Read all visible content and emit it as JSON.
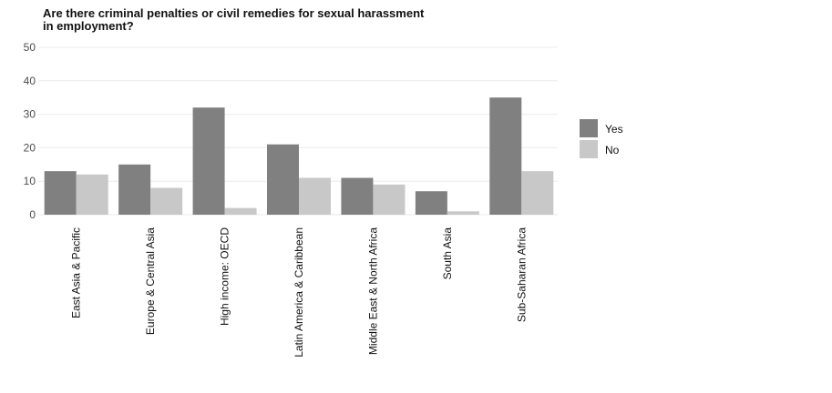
{
  "chart_data": {
    "type": "bar",
    "title": "Are there criminal penalties or civil remedies for sexual harassment\n in employment?",
    "xlabel": "",
    "ylabel": "",
    "ylim": [
      0,
      50
    ],
    "yticks": [
      0,
      10,
      20,
      30,
      40,
      50
    ],
    "grid": true,
    "legend_position": "right",
    "categories": [
      "East Asia & Pacific",
      "Europe & Central Asia",
      "High income: OECD",
      "Latin America & Caribbean",
      "Middle East & North Africa",
      "South Asia",
      "Sub-Saharan Africa"
    ],
    "series": [
      {
        "name": "Yes",
        "color": "#808080",
        "values": [
          13,
          15,
          32,
          21,
          11,
          7,
          35
        ]
      },
      {
        "name": "No",
        "color": "#c8c8c8",
        "values": [
          12,
          8,
          2,
          11,
          9,
          1,
          13
        ]
      }
    ]
  }
}
